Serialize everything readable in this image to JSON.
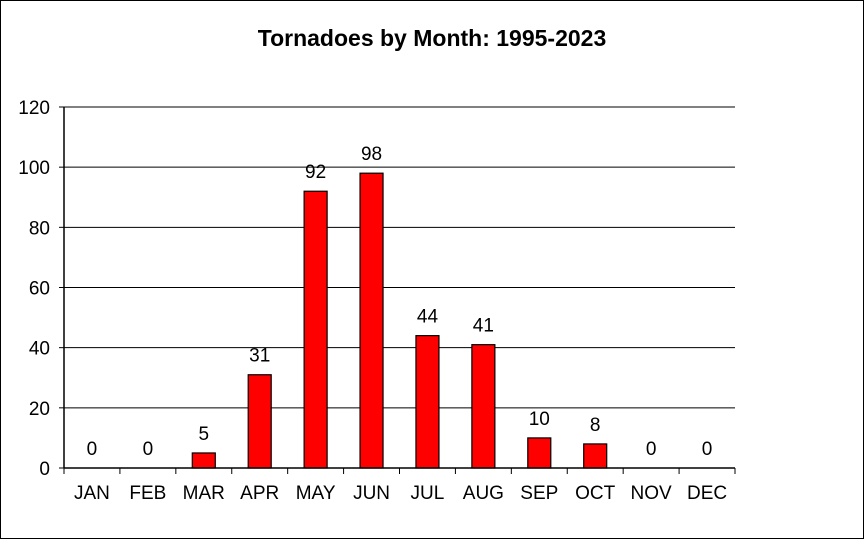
{
  "chart_data": {
    "type": "bar",
    "title": "Tornadoes by Month: 1995-2023",
    "xlabel": "",
    "ylabel": "",
    "categories": [
      "JAN",
      "FEB",
      "MAR",
      "APR",
      "MAY",
      "JUN",
      "JUL",
      "AUG",
      "SEP",
      "OCT",
      "NOV",
      "DEC"
    ],
    "values": [
      0,
      0,
      5,
      31,
      92,
      98,
      44,
      41,
      10,
      8,
      0,
      0
    ],
    "data_labels": [
      "0",
      "0",
      "5",
      "31",
      "92",
      "98",
      "44",
      "41",
      "10",
      "8",
      "0",
      "0"
    ],
    "ylim": [
      0,
      120
    ],
    "yticks": [
      "0",
      "20",
      "40",
      "60",
      "80",
      "100",
      "120"
    ],
    "grid": true,
    "legend": "none",
    "colors": {
      "bar_fill": "#ff0000",
      "bar_stroke": "#000000",
      "grid": "#000000"
    }
  }
}
